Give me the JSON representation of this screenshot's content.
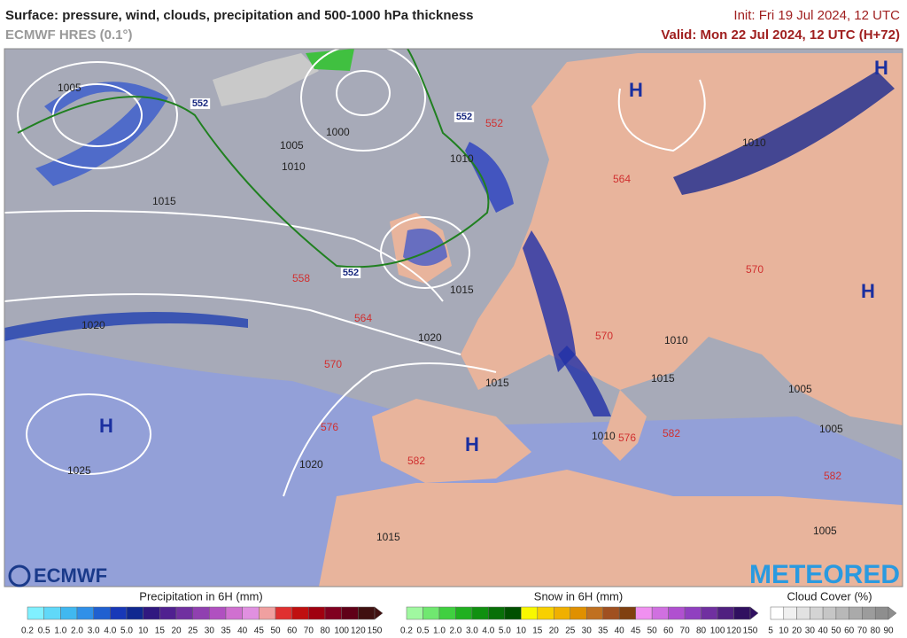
{
  "header": {
    "title": "Surface: pressure, wind, clouds, precipitation and 500-1000 hPa thickness",
    "model": "ECMWF HRES (0.1°)",
    "init": "Init: Fri 19 Jul 2024, 12 UTC",
    "valid": "Valid: Mon 22 Jul 2024, 12 UTC (H+72)"
  },
  "map": {
    "highs": [
      "H",
      "H",
      "H",
      "H",
      "H"
    ],
    "isobar_labels": [
      "1005",
      "1000",
      "1005",
      "1010",
      "1015",
      "1010",
      "1015",
      "1020",
      "1020",
      "1025",
      "1020",
      "1015",
      "1010",
      "1010",
      "1015",
      "1005",
      "1010",
      "1005",
      "1015",
      "1005"
    ],
    "thickness_labels": [
      "558",
      "564",
      "570",
      "576",
      "582",
      "552",
      "570",
      "570",
      "564",
      "576",
      "582",
      "582"
    ],
    "contour_552_labels": [
      "552",
      "552",
      "552"
    ]
  },
  "logos": {
    "left": "ECMWF",
    "right": "METEORED"
  },
  "legends": [
    {
      "title": "Precipitation in 6H (mm)",
      "labels": [
        "0.2",
        "0.5",
        "1.0",
        "2.0",
        "3.0",
        "4.0",
        "5.0",
        "10",
        "15",
        "20",
        "25",
        "30",
        "35",
        "40",
        "45",
        "50",
        "60",
        "70",
        "80",
        "100",
        "120",
        "150"
      ],
      "colors": [
        "#80f0ff",
        "#60d8f8",
        "#40b8f0",
        "#3090e8",
        "#2060d0",
        "#1838b8",
        "#102890",
        "#301880",
        "#502090",
        "#7030a0",
        "#9040b0",
        "#b050c0",
        "#d070d0",
        "#e090e0",
        "#f0a0a0",
        "#e03030",
        "#c01010",
        "#a00010",
        "#800020",
        "#600018",
        "#401010"
      ]
    },
    {
      "title": "Snow in 6H (mm)",
      "labels": [
        "0.2",
        "0.5",
        "1.0",
        "2.0",
        "3.0",
        "4.0",
        "5.0",
        "10",
        "15",
        "20",
        "25",
        "30",
        "35",
        "40",
        "45",
        "50",
        "60",
        "70",
        "80",
        "100",
        "120",
        "150"
      ],
      "colors": [
        "#a0f8a0",
        "#70e870",
        "#40d040",
        "#20b020",
        "#109010",
        "#087008",
        "#005000",
        "#f8f800",
        "#f8d000",
        "#f0b000",
        "#e09000",
        "#c07020",
        "#a05020",
        "#804010",
        "#f090f0",
        "#d070e0",
        "#b050d0",
        "#9040c0",
        "#7030a0",
        "#502080",
        "#301060"
      ]
    },
    {
      "title": "Cloud Cover (%)",
      "labels": [
        "5",
        "10",
        "20",
        "30",
        "40",
        "50",
        "60",
        "70",
        "80",
        "90"
      ],
      "colors": [
        "#ffffff",
        "#f0f0f0",
        "#e2e2e2",
        "#d4d4d4",
        "#c6c6c6",
        "#b8b8b8",
        "#aaaaaa",
        "#9c9c9c",
        "#8e8e8e"
      ]
    }
  ]
}
